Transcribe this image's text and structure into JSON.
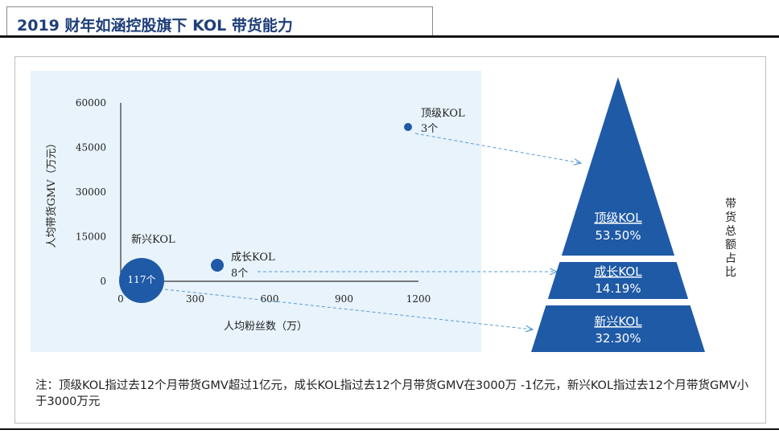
{
  "header": {
    "title": "2019 财年如涵控股旗下 KOL 带货能力"
  },
  "chart_data": [
    {
      "type": "scatter",
      "title": "",
      "xlabel": "人均粉丝数（万）",
      "ylabel": "人均带货GMV（万元）",
      "xlim": [
        0,
        1200
      ],
      "ylim": [
        0,
        60000
      ],
      "x_ticks": [
        "0",
        "300",
        "600",
        "900",
        "1200"
      ],
      "y_ticks": [
        "0",
        "15000",
        "30000",
        "45000",
        "60000"
      ],
      "points": [
        {
          "label": "顶级KOL",
          "count": "3个",
          "x": 1150,
          "y": 51000
        },
        {
          "label": "成长KOL",
          "count": "8个",
          "x": 390,
          "y": 5200
        },
        {
          "label": "新兴KOL",
          "count": "117个",
          "x": 80,
          "y": 200
        }
      ]
    },
    {
      "type": "pie",
      "title": "",
      "categories": [
        "顶级KOL",
        "成长KOL",
        "新兴KOL"
      ],
      "values": [
        53.5,
        14.19,
        32.3
      ],
      "value_labels": [
        "53.50%",
        "14.19%",
        "32.30%"
      ]
    }
  ],
  "side_label": "带货总额占比",
  "note": "注：顶级KOL指过去12个月带货GMV超过1亿元，成长KOL指过去12个月带货GMV在3000万 -1亿元，新兴KOL指过去12个月带货GMV小于3000万元",
  "colors": {
    "primary": "#1f5aa6",
    "title": "#1f3f7a",
    "panel": "#e8f3fb",
    "arrow": "#5b9bd5"
  }
}
